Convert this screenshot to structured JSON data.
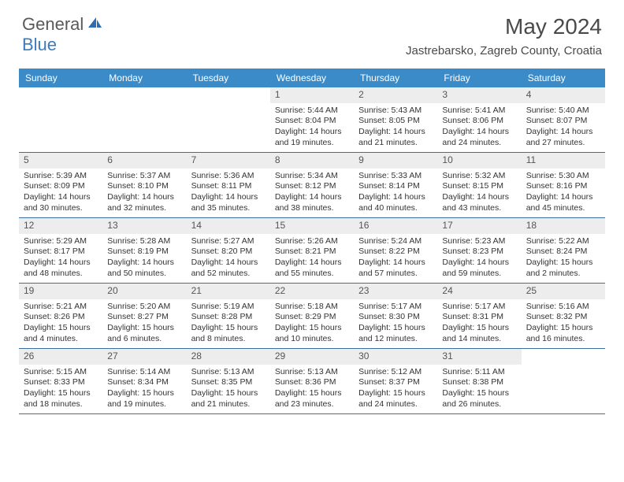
{
  "logo": {
    "general": "General",
    "blue": "Blue"
  },
  "title": "May 2024",
  "location": "Jastrebarsko, Zagreb County, Croatia",
  "colors": {
    "header_bg": "#3b8bc9",
    "header_text": "#ffffff",
    "daynum_bg": "#ededed",
    "border": "#3b6fa0",
    "logo_gray": "#5a5a5a",
    "logo_blue": "#3b7bbf"
  },
  "weekdays": [
    "Sunday",
    "Monday",
    "Tuesday",
    "Wednesday",
    "Thursday",
    "Friday",
    "Saturday"
  ],
  "days": [
    {
      "n": 1,
      "sunrise": "5:44 AM",
      "sunset": "8:04 PM",
      "daylight": "14 hours and 19 minutes."
    },
    {
      "n": 2,
      "sunrise": "5:43 AM",
      "sunset": "8:05 PM",
      "daylight": "14 hours and 21 minutes."
    },
    {
      "n": 3,
      "sunrise": "5:41 AM",
      "sunset": "8:06 PM",
      "daylight": "14 hours and 24 minutes."
    },
    {
      "n": 4,
      "sunrise": "5:40 AM",
      "sunset": "8:07 PM",
      "daylight": "14 hours and 27 minutes."
    },
    {
      "n": 5,
      "sunrise": "5:39 AM",
      "sunset": "8:09 PM",
      "daylight": "14 hours and 30 minutes."
    },
    {
      "n": 6,
      "sunrise": "5:37 AM",
      "sunset": "8:10 PM",
      "daylight": "14 hours and 32 minutes."
    },
    {
      "n": 7,
      "sunrise": "5:36 AM",
      "sunset": "8:11 PM",
      "daylight": "14 hours and 35 minutes."
    },
    {
      "n": 8,
      "sunrise": "5:34 AM",
      "sunset": "8:12 PM",
      "daylight": "14 hours and 38 minutes."
    },
    {
      "n": 9,
      "sunrise": "5:33 AM",
      "sunset": "8:14 PM",
      "daylight": "14 hours and 40 minutes."
    },
    {
      "n": 10,
      "sunrise": "5:32 AM",
      "sunset": "8:15 PM",
      "daylight": "14 hours and 43 minutes."
    },
    {
      "n": 11,
      "sunrise": "5:30 AM",
      "sunset": "8:16 PM",
      "daylight": "14 hours and 45 minutes."
    },
    {
      "n": 12,
      "sunrise": "5:29 AM",
      "sunset": "8:17 PM",
      "daylight": "14 hours and 48 minutes."
    },
    {
      "n": 13,
      "sunrise": "5:28 AM",
      "sunset": "8:19 PM",
      "daylight": "14 hours and 50 minutes."
    },
    {
      "n": 14,
      "sunrise": "5:27 AM",
      "sunset": "8:20 PM",
      "daylight": "14 hours and 52 minutes."
    },
    {
      "n": 15,
      "sunrise": "5:26 AM",
      "sunset": "8:21 PM",
      "daylight": "14 hours and 55 minutes."
    },
    {
      "n": 16,
      "sunrise": "5:24 AM",
      "sunset": "8:22 PM",
      "daylight": "14 hours and 57 minutes."
    },
    {
      "n": 17,
      "sunrise": "5:23 AM",
      "sunset": "8:23 PM",
      "daylight": "14 hours and 59 minutes."
    },
    {
      "n": 18,
      "sunrise": "5:22 AM",
      "sunset": "8:24 PM",
      "daylight": "15 hours and 2 minutes."
    },
    {
      "n": 19,
      "sunrise": "5:21 AM",
      "sunset": "8:26 PM",
      "daylight": "15 hours and 4 minutes."
    },
    {
      "n": 20,
      "sunrise": "5:20 AM",
      "sunset": "8:27 PM",
      "daylight": "15 hours and 6 minutes."
    },
    {
      "n": 21,
      "sunrise": "5:19 AM",
      "sunset": "8:28 PM",
      "daylight": "15 hours and 8 minutes."
    },
    {
      "n": 22,
      "sunrise": "5:18 AM",
      "sunset": "8:29 PM",
      "daylight": "15 hours and 10 minutes."
    },
    {
      "n": 23,
      "sunrise": "5:17 AM",
      "sunset": "8:30 PM",
      "daylight": "15 hours and 12 minutes."
    },
    {
      "n": 24,
      "sunrise": "5:17 AM",
      "sunset": "8:31 PM",
      "daylight": "15 hours and 14 minutes."
    },
    {
      "n": 25,
      "sunrise": "5:16 AM",
      "sunset": "8:32 PM",
      "daylight": "15 hours and 16 minutes."
    },
    {
      "n": 26,
      "sunrise": "5:15 AM",
      "sunset": "8:33 PM",
      "daylight": "15 hours and 18 minutes."
    },
    {
      "n": 27,
      "sunrise": "5:14 AM",
      "sunset": "8:34 PM",
      "daylight": "15 hours and 19 minutes."
    },
    {
      "n": 28,
      "sunrise": "5:13 AM",
      "sunset": "8:35 PM",
      "daylight": "15 hours and 21 minutes."
    },
    {
      "n": 29,
      "sunrise": "5:13 AM",
      "sunset": "8:36 PM",
      "daylight": "15 hours and 23 minutes."
    },
    {
      "n": 30,
      "sunrise": "5:12 AM",
      "sunset": "8:37 PM",
      "daylight": "15 hours and 24 minutes."
    },
    {
      "n": 31,
      "sunrise": "5:11 AM",
      "sunset": "8:38 PM",
      "daylight": "15 hours and 26 minutes."
    }
  ],
  "start_weekday_index": 3,
  "labels": {
    "sunrise": "Sunrise:",
    "sunset": "Sunset:",
    "daylight": "Daylight:"
  }
}
